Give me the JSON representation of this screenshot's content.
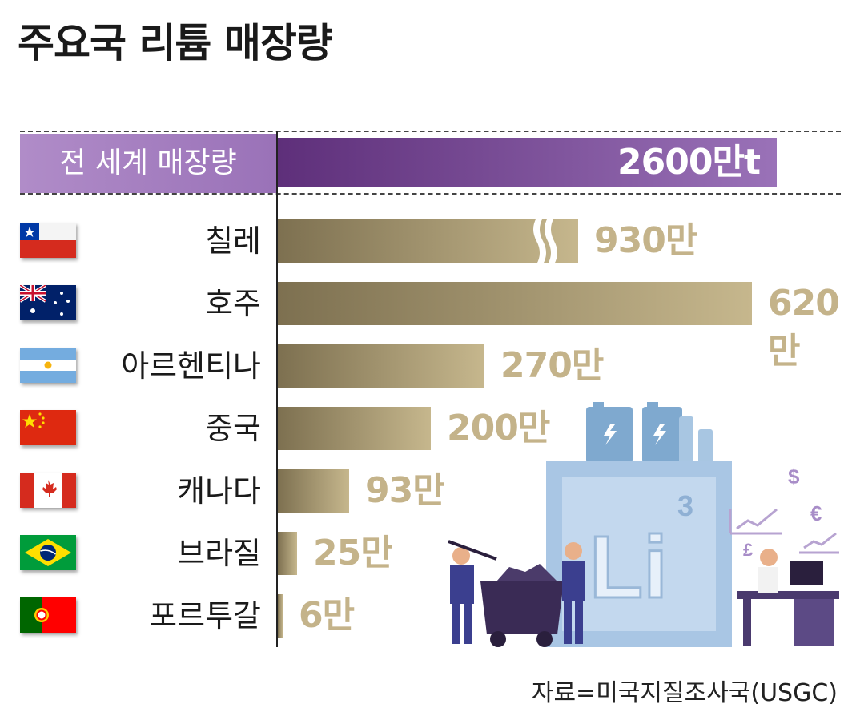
{
  "title": "주요국 리튬 매장량",
  "source": "자료=미국지질조사국(USGC)",
  "world": {
    "label": "전 세계 매장량",
    "value_label": "2600만t"
  },
  "illustration": {
    "element_symbol": "Li",
    "element_number": "3",
    "currency_symbols": [
      "$",
      "€",
      "£"
    ]
  },
  "chart_data": {
    "type": "bar",
    "orientation": "horizontal",
    "title": "주요국 리튬 매장량",
    "unit": "만t",
    "total": {
      "label": "전 세계 매장량",
      "value": 2600,
      "value_label": "2600만t"
    },
    "categories": [
      "칠레",
      "호주",
      "아르헨티나",
      "중국",
      "캐나다",
      "브라질",
      "포르투갈"
    ],
    "values": [
      930,
      620,
      270,
      200,
      93,
      25,
      6
    ],
    "value_labels": [
      "930만",
      "620만",
      "270만",
      "200만",
      "93만",
      "25만",
      "6만"
    ],
    "broken_axis_on": "칠레",
    "colors": {
      "world_bar": "#7a4a9a",
      "country_bar": "#b5a67c",
      "value_text": "#c4b38a"
    }
  },
  "flags": [
    "chile-flag-icon",
    "australia-flag-icon",
    "argentina-flag-icon",
    "china-flag-icon",
    "canada-flag-icon",
    "brazil-flag-icon",
    "portugal-flag-icon"
  ]
}
